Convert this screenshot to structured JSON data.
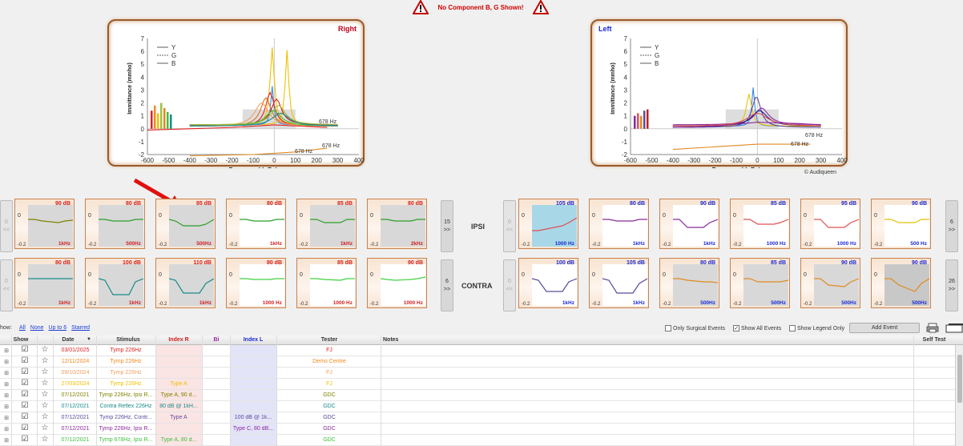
{
  "warning": {
    "text": "No Component B, G Shown!"
  },
  "right_panel": {
    "title": "Right",
    "title_color": "#c0001a",
    "legend": [
      "Y",
      "G",
      "B"
    ],
    "ylabel": "Immittance (mmho)",
    "xlabel": "Pressure (daPa)",
    "yticks": [
      "7",
      "6",
      "5",
      "4",
      "3",
      "2",
      "1",
      "0",
      "-1",
      "-2"
    ],
    "xticks": [
      "-600",
      "-500",
      "-400",
      "-300",
      "-200",
      "-100",
      "0",
      "100",
      "200",
      "300",
      "400"
    ],
    "annotations": [
      "678 Hz",
      "678 Hz",
      "678 Hz"
    ]
  },
  "left_panel": {
    "title": "Left",
    "title_color": "#1a2ad4",
    "legend": [
      "Y",
      "G",
      "B"
    ],
    "ylabel": "Immittance (mmho)",
    "xlabel": "Pressure (daPa)",
    "yticks": [
      "7",
      "6",
      "5",
      "4",
      "3",
      "2",
      "1",
      "0",
      "-1",
      "-2"
    ],
    "xticks": [
      "-600",
      "-500",
      "-400",
      "-300",
      "-200",
      "-100",
      "0",
      "100",
      "200",
      "300",
      "400"
    ],
    "annotations": [
      "678 Hz",
      "678 Hz"
    ],
    "copyright": "© Audiqueen"
  },
  "right_ipsi": [
    {
      "db": "90 dB",
      "freq": "1kHz",
      "color": "#808000"
    },
    {
      "db": "80 dB",
      "freq": "500Hz",
      "color": "#2aa02a"
    },
    {
      "db": "85 dB",
      "freq": "500Hz",
      "color": "#2aa02a"
    },
    {
      "db": "80 dB",
      "freq": "1kHz",
      "color": "#2aa02a"
    },
    {
      "db": "85 dB",
      "freq": "1kHz",
      "color": "#2aa02a"
    },
    {
      "db": "80 dB",
      "freq": "2kHz",
      "color": "#2aa02a"
    }
  ],
  "right_contra": [
    {
      "db": "80 dB",
      "freq": "1kHz",
      "color": "#1a8a8a"
    },
    {
      "db": "100 dB",
      "freq": "1kHz",
      "color": "#1a8a8a"
    },
    {
      "db": "110 dB",
      "freq": "1kHz",
      "color": "#1a8a8a"
    },
    {
      "db": "80 dB",
      "freq": "1000 Hz",
      "color": "#40d040"
    },
    {
      "db": "85 dB",
      "freq": "1000 Hz",
      "color": "#40d040"
    },
    {
      "db": "90 dB",
      "freq": "1000 Hz",
      "color": "#40d040"
    }
  ],
  "left_ipsi": [
    {
      "db": "105 dB",
      "freq": "1000 Hz",
      "color": "#e05050"
    },
    {
      "db": "80 dB",
      "freq": "1kHz",
      "color": "#8a2a9a"
    },
    {
      "db": "90 dB",
      "freq": "1kHz",
      "color": "#8a2a9a"
    },
    {
      "db": "85 dB",
      "freq": "1000 Hz",
      "color": "#e05050"
    },
    {
      "db": "95 dB",
      "freq": "1000 Hz",
      "color": "#e05050"
    },
    {
      "db": "90 dB",
      "freq": "500 Hz",
      "color": "#e0c000"
    }
  ],
  "left_contra": [
    {
      "db": "100 dB",
      "freq": "1kHz",
      "color": "#5a4a9a"
    },
    {
      "db": "105 dB",
      "freq": "1kHz",
      "color": "#5a4a9a"
    },
    {
      "db": "80 dB",
      "freq": "500Hz",
      "color": "#e08a20"
    },
    {
      "db": "85 dB",
      "freq": "500Hz",
      "color": "#e08a20"
    },
    {
      "db": "90 dB",
      "freq": "500Hz",
      "color": "#e08a20"
    },
    {
      "db": "90 dB",
      "freq": "500Hz",
      "color": "#e08a20"
    }
  ],
  "thumb_zero": "0",
  "thumb_min": "-0.2",
  "labels": {
    "ipsi": "IPSI",
    "contra": "CONTRA"
  },
  "nav": {
    "r_ipsi_prev": "0",
    "r_ipsi_next": "15",
    "r_contra_prev": "0",
    "r_contra_next": "6",
    "l_ipsi_prev": "0",
    "l_ipsi_next": "6",
    "l_contra_prev": "0",
    "l_contra_next": "26",
    "prev_arrow": "<<",
    "next_arrow": ">>"
  },
  "toolbar": {
    "show_label": "how:",
    "all": "All",
    "none": "None",
    "upto6": "Up to 6",
    "starred": "Starred",
    "only_surgical": "Only Surgical Events",
    "show_all": "Show All Events",
    "show_legend": "Show Legend Only",
    "add_event": "Add Event"
  },
  "grid": {
    "headers": [
      "Show",
      "Date",
      "Stimulus",
      "Index R",
      "Bi",
      "Index L",
      "Tester",
      "Notes",
      "Self Test"
    ],
    "rows": [
      {
        "date": "03/01/2025",
        "stimulus": "Tymp 226Hz",
        "index_r": "",
        "index_l": "",
        "tester": "FJ",
        "color": "#e02020"
      },
      {
        "date": "12/11/2024",
        "stimulus": "Tymp 226Hz",
        "index_r": "",
        "index_l": "",
        "tester": "Demo Centre",
        "color": "#f08a20"
      },
      {
        "date": "09/10/2024",
        "stimulus": "Tymp 226Hz",
        "index_r": "",
        "index_l": "",
        "tester": "FJ",
        "color": "#f0a060"
      },
      {
        "date": "27/03/2024",
        "stimulus": "Tymp 226Hz",
        "index_r": "Type A",
        "index_l": "",
        "tester": "FJ",
        "color": "#f0c000"
      },
      {
        "date": "07/12/2021",
        "stimulus": "Tymp 226Hz, Ipsi R...",
        "index_r": "Type A, 90 d...",
        "index_l": "",
        "tester": "GDC",
        "color": "#808000"
      },
      {
        "date": "07/12/2021",
        "stimulus": "Contra Reflex 226Hz",
        "index_r": "80 dB @ 1kH...",
        "index_l": "",
        "tester": "GDC",
        "color": "#1a8a8a"
      },
      {
        "date": "07/12/2021",
        "stimulus": "Tymp 226Hz, Contr...",
        "index_r": "Type A",
        "index_l": "100 dB @ 1k...",
        "tester": "GDC",
        "color": "#5a4a9a"
      },
      {
        "date": "07/12/2021",
        "stimulus": "Tymp 226Hz, Ipsi R...",
        "index_r": "",
        "index_l": "Type C, 80 dB...",
        "tester": "GDC",
        "color": "#8a2a9a"
      },
      {
        "date": "07/12/2021",
        "stimulus": "Tymp 678Hz, Ipsi R...",
        "index_r": "Type A, 80 d...",
        "index_l": "",
        "tester": "GDC",
        "color": "#40c040"
      }
    ]
  }
}
